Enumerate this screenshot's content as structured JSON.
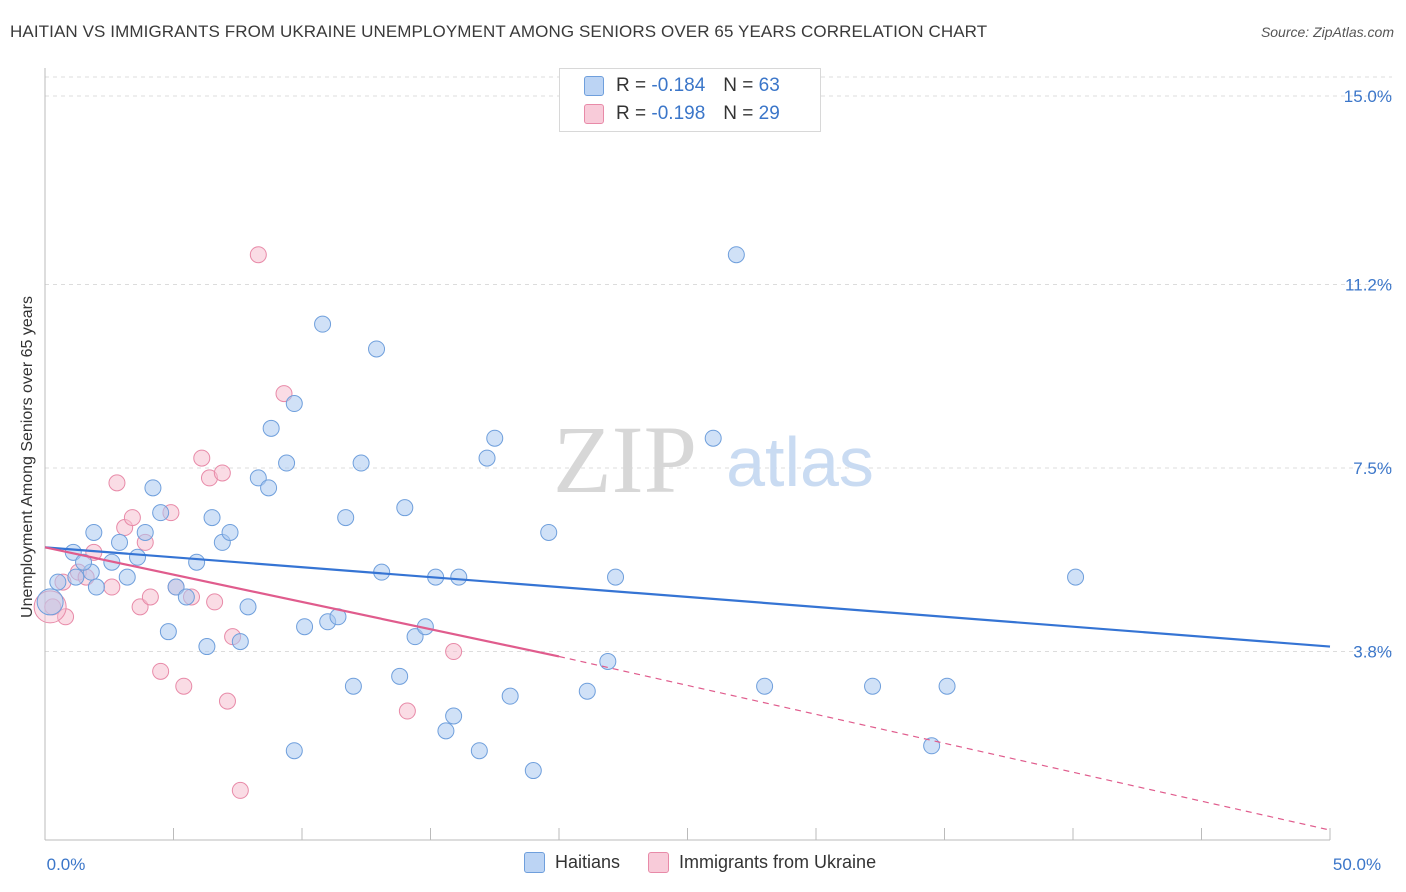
{
  "chart_data": {
    "type": "scatter",
    "title": "HAITIAN VS IMMIGRANTS FROM UKRAINE UNEMPLOYMENT AMONG SENIORS OVER 65 YEARS CORRELATION CHART",
    "source": "Source: ZipAtlas.com",
    "xlabel": "",
    "ylabel": "Unemployment Among Seniors over 65 years",
    "xlim": [
      0,
      50
    ],
    "ylim": [
      0,
      15
    ],
    "x_tick_labels": [
      "0.0%",
      "50.0%"
    ],
    "y_ticks": [
      {
        "value": 3.8,
        "label": "3.8%"
      },
      {
        "value": 7.5,
        "label": "7.5%"
      },
      {
        "value": 11.2,
        "label": "11.2%"
      },
      {
        "value": 15.0,
        "label": "15.0%"
      }
    ],
    "watermark": {
      "zip": "ZIP",
      "atlas": "atlas"
    },
    "legend": {
      "r_label": "R =",
      "n_label": "N =",
      "rows": [
        {
          "r": "-0.184",
          "n": "63"
        },
        {
          "r": "-0.198",
          "n": "29"
        }
      ]
    },
    "series": [
      {
        "name": "Haitians",
        "color": "#a9c8f0",
        "edge": "#6f9fdc",
        "line_color": "#3574d4",
        "trend": {
          "x0": 0,
          "y0": 5.9,
          "x1": 50,
          "y1": 3.9
        },
        "points": [
          [
            0.5,
            5.2
          ],
          [
            1.2,
            5.3
          ],
          [
            1.8,
            5.4
          ],
          [
            1.1,
            5.8
          ],
          [
            1.5,
            5.6
          ],
          [
            2.0,
            5.1
          ],
          [
            1.9,
            6.2
          ],
          [
            2.6,
            5.6
          ],
          [
            2.9,
            6.0
          ],
          [
            3.2,
            5.3
          ],
          [
            3.6,
            5.7
          ],
          [
            3.9,
            6.2
          ],
          [
            4.2,
            7.1
          ],
          [
            4.5,
            6.6
          ],
          [
            4.8,
            4.2
          ],
          [
            5.1,
            5.1
          ],
          [
            5.5,
            4.9
          ],
          [
            5.9,
            5.6
          ],
          [
            6.3,
            3.9
          ],
          [
            6.5,
            6.5
          ],
          [
            6.9,
            6.0
          ],
          [
            7.2,
            6.2
          ],
          [
            7.6,
            4.0
          ],
          [
            7.9,
            4.7
          ],
          [
            8.3,
            7.3
          ],
          [
            8.7,
            7.1
          ],
          [
            8.8,
            8.3
          ],
          [
            9.4,
            7.6
          ],
          [
            9.7,
            8.8
          ],
          [
            9.7,
            1.8
          ],
          [
            10.1,
            4.3
          ],
          [
            10.8,
            10.4
          ],
          [
            11.0,
            4.4
          ],
          [
            11.4,
            4.5
          ],
          [
            11.7,
            6.5
          ],
          [
            12.0,
            3.1
          ],
          [
            12.3,
            7.6
          ],
          [
            12.9,
            9.9
          ],
          [
            13.1,
            5.4
          ],
          [
            13.8,
            3.3
          ],
          [
            14.0,
            6.7
          ],
          [
            14.4,
            4.1
          ],
          [
            14.8,
            4.3
          ],
          [
            15.2,
            5.3
          ],
          [
            15.6,
            2.2
          ],
          [
            15.9,
            2.5
          ],
          [
            16.1,
            5.3
          ],
          [
            16.9,
            1.8
          ],
          [
            17.2,
            7.7
          ],
          [
            17.5,
            8.1
          ],
          [
            18.1,
            2.9
          ],
          [
            19.0,
            1.4
          ],
          [
            19.6,
            6.2
          ],
          [
            21.1,
            3.0
          ],
          [
            21.9,
            3.6
          ],
          [
            22.2,
            5.3
          ],
          [
            26.0,
            8.1
          ],
          [
            26.9,
            11.8
          ],
          [
            28.0,
            3.1
          ],
          [
            32.2,
            3.1
          ],
          [
            34.5,
            1.9
          ],
          [
            35.1,
            3.1
          ],
          [
            40.1,
            5.3
          ]
        ]
      },
      {
        "name": "Immigrants from Ukraine",
        "color": "#f6bfd0",
        "edge": "#e88aa8",
        "line_color": "#e05c8d",
        "trend": {
          "x0": 0,
          "y0": 5.9,
          "x1": 20,
          "y1": 3.7
        },
        "trend_dashed": {
          "x0": 20,
          "y0": 3.7,
          "x1": 50,
          "y1": 0.2
        },
        "points": [
          [
            0.3,
            4.7
          ],
          [
            0.8,
            4.5
          ],
          [
            1.3,
            5.4
          ],
          [
            1.9,
            5.8
          ],
          [
            2.6,
            5.1
          ],
          [
            2.8,
            7.2
          ],
          [
            3.1,
            6.3
          ],
          [
            3.4,
            6.5
          ],
          [
            3.7,
            4.7
          ],
          [
            3.9,
            6.0
          ],
          [
            4.1,
            4.9
          ],
          [
            4.5,
            3.4
          ],
          [
            4.9,
            6.6
          ],
          [
            5.1,
            5.1
          ],
          [
            5.4,
            3.1
          ],
          [
            5.7,
            4.9
          ],
          [
            6.1,
            7.7
          ],
          [
            6.4,
            7.3
          ],
          [
            6.6,
            4.8
          ],
          [
            6.9,
            7.4
          ],
          [
            7.1,
            2.8
          ],
          [
            7.3,
            4.1
          ],
          [
            7.6,
            1.0
          ],
          [
            8.3,
            11.8
          ],
          [
            9.3,
            9.0
          ],
          [
            14.1,
            2.6
          ],
          [
            15.9,
            3.8
          ],
          [
            0.7,
            5.2
          ],
          [
            1.6,
            5.3
          ]
        ]
      }
    ]
  }
}
